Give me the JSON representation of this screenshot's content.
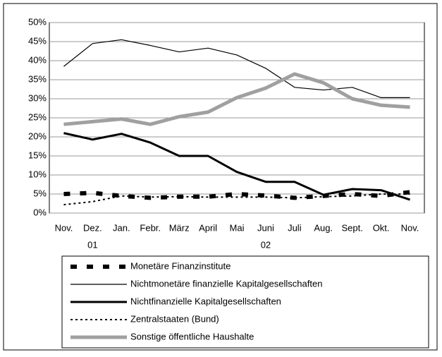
{
  "chart_data": {
    "type": "line",
    "categories": [
      "Nov.",
      "Dez.",
      "Jan.",
      "Febr.",
      "März",
      "April",
      "Mai",
      "Juni",
      "Juli",
      "Aug.",
      "Sept.",
      "Okt.",
      "Nov."
    ],
    "year_labels": [
      null,
      "01",
      null,
      null,
      null,
      null,
      null,
      "02",
      null,
      null,
      null,
      null,
      null
    ],
    "ylim": [
      0,
      50
    ],
    "yticks": [
      {
        "value": 0,
        "label": "0%"
      },
      {
        "value": 5,
        "label": "5%"
      },
      {
        "value": 10,
        "label": "10%"
      },
      {
        "value": 15,
        "label": "15%"
      },
      {
        "value": 20,
        "label": "20%"
      },
      {
        "value": 25,
        "label": "25%"
      },
      {
        "value": 30,
        "label": "30%"
      },
      {
        "value": 35,
        "label": "35%"
      },
      {
        "value": 40,
        "label": "40%"
      },
      {
        "value": 45,
        "label": "45%"
      },
      {
        "value": 50,
        "label": "50%"
      }
    ],
    "grid": true,
    "series": [
      {
        "name": "Monetäre Finanzinstitute",
        "color": "#000000",
        "values": [
          5,
          5.3,
          4.5,
          4,
          4.3,
          4.3,
          5,
          4.6,
          4,
          4.5,
          5,
          4.5,
          5.5
        ]
      },
      {
        "name": "Nichtmonetäre finanzielle Kapitalgesellschaften",
        "color": "#000000",
        "values": [
          38.5,
          44.5,
          45.5,
          44,
          42.3,
          43.3,
          41.5,
          38,
          33,
          32.3,
          33,
          30.3,
          30.3
        ]
      },
      {
        "name": "Nichtfinanzielle Kapitalgesellschaften",
        "color": "#000000",
        "values": [
          21,
          19.3,
          20.8,
          18.5,
          15,
          15,
          10.8,
          8.2,
          8.2,
          4.8,
          6.3,
          6,
          3.5
        ]
      },
      {
        "name": "Zentralstaaten (Bund)",
        "color": "#000000",
        "values": [
          2.2,
          3,
          4.5,
          4.2,
          4.3,
          4.2,
          4.2,
          4.2,
          4,
          4.3,
          4.5,
          5,
          5
        ]
      },
      {
        "name": "Sonstige öffentliche Haushalte",
        "color": "#a0a0a0",
        "values": [
          23.3,
          24,
          24.7,
          23.3,
          25.3,
          26.5,
          30.3,
          32.8,
          36.5,
          34.2,
          30,
          28.3,
          27.8
        ]
      }
    ]
  }
}
